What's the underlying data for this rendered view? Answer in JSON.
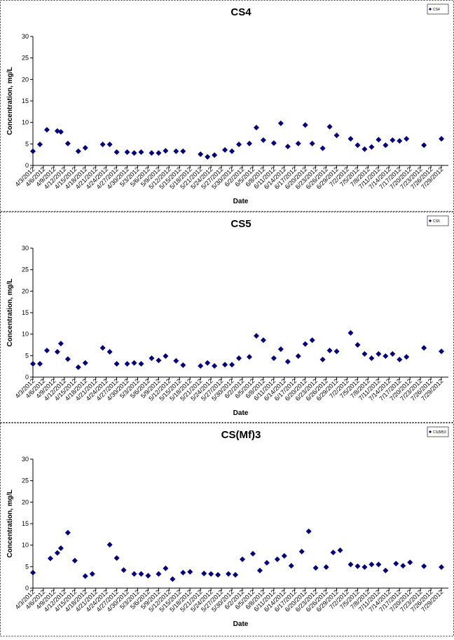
{
  "chart_data": [
    {
      "type": "scatter",
      "title": "CS4",
      "x_label": "Date",
      "y_label": "Concentration, mg/L",
      "x": [
        "4/3/2012",
        "4/5/2012",
        "4/7/2012",
        "4/10/2012",
        "4/11/2012",
        "4/13/2012",
        "4/16/2012",
        "4/18/2012",
        "4/23/2012",
        "4/25/2012",
        "4/27/2012",
        "4/30/2012",
        "5/2/2012",
        "5/4/2012",
        "5/7/2012",
        "5/9/2012",
        "5/11/2012",
        "5/14/2012",
        "5/16/2012",
        "5/21/2012",
        "5/23/2012",
        "5/25/2012",
        "5/28/2012",
        "5/30/2012",
        "6/1/2012",
        "6/4/2012",
        "6/6/2012",
        "6/8/2012",
        "6/11/2012",
        "6/13/2012",
        "6/15/2012",
        "6/18/2012",
        "6/20/2012",
        "6/22/2012",
        "6/25/2012",
        "6/27/2012",
        "6/29/2012",
        "7/3/2012",
        "7/5/2012",
        "7/7/2012",
        "7/9/2012",
        "7/11/2012",
        "7/13/2012",
        "7/15/2012",
        "7/17/2012",
        "7/19/2012",
        "7/24/2012",
        "7/29/2012"
      ],
      "series": [
        {
          "name": "CS4",
          "color": "#000080",
          "values": [
            3.3,
            4.9,
            8.3,
            8.0,
            7.8,
            5.1,
            3.3,
            4.1,
            4.9,
            4.9,
            3.1,
            3.1,
            2.9,
            3.1,
            2.9,
            2.9,
            3.4,
            3.3,
            3.3,
            2.6,
            2.0,
            2.4,
            3.6,
            3.3,
            4.9,
            5.1,
            8.8,
            5.9,
            5.2,
            9.8,
            4.4,
            5.1,
            9.4,
            5.1,
            4.0,
            9.0,
            7.0,
            6.2,
            4.7,
            3.8,
            4.3,
            6.0,
            4.7,
            5.9,
            5.7,
            6.2,
            4.7,
            6.2
          ]
        }
      ],
      "xlim": [
        "4/3/2012",
        "7/31/2012"
      ],
      "xticks": [
        "4/3/2012",
        "4/6/2012",
        "4/9/2012",
        "4/12/2012",
        "4/15/2012",
        "4/18/2012",
        "4/21/2012",
        "4/24/2012",
        "4/27/2012",
        "4/30/2012",
        "5/3/2012",
        "5/6/2012",
        "5/9/2012",
        "5/12/2012",
        "5/15/2012",
        "5/18/2012",
        "5/21/2012",
        "5/24/2012",
        "5/27/2012",
        "5/30/2012",
        "6/2/2012",
        "6/5/2012",
        "6/8/2012",
        "6/11/2012",
        "6/14/2012",
        "6/17/2012",
        "6/20/2012",
        "6/23/2012",
        "6/26/2012",
        "6/29/2012",
        "7/2/2012",
        "7/5/2012",
        "7/8/2012",
        "7/11/2012",
        "7/14/2012",
        "7/17/2012",
        "7/20/2012",
        "7/23/2012",
        "7/26/2012",
        "7/29/2012"
      ],
      "ylim": [
        0,
        30
      ],
      "yticks": [
        0,
        5,
        10,
        15,
        20,
        25,
        30
      ]
    },
    {
      "type": "scatter",
      "title": "CS5",
      "x_label": "Date",
      "y_label": "Concentration, mg/L",
      "x": [
        "4/3/2012",
        "4/5/2012",
        "4/7/2012",
        "4/10/2012",
        "4/11/2012",
        "4/13/2012",
        "4/16/2012",
        "4/18/2012",
        "4/23/2012",
        "4/25/2012",
        "4/27/2012",
        "4/30/2012",
        "5/2/2012",
        "5/4/2012",
        "5/7/2012",
        "5/9/2012",
        "5/11/2012",
        "5/14/2012",
        "5/16/2012",
        "5/21/2012",
        "5/23/2012",
        "5/25/2012",
        "5/28/2012",
        "5/30/2012",
        "6/1/2012",
        "6/4/2012",
        "6/6/2012",
        "6/8/2012",
        "6/11/2012",
        "6/13/2012",
        "6/15/2012",
        "6/18/2012",
        "6/20/2012",
        "6/22/2012",
        "6/25/2012",
        "6/27/2012",
        "6/29/2012",
        "7/3/2012",
        "7/5/2012",
        "7/7/2012",
        "7/9/2012",
        "7/11/2012",
        "7/13/2012",
        "7/15/2012",
        "7/17/2012",
        "7/19/2012",
        "7/24/2012",
        "7/29/2012"
      ],
      "series": [
        {
          "name": "CS5",
          "color": "#000080",
          "values": [
            3.1,
            3.1,
            6.2,
            5.9,
            7.8,
            4.2,
            2.3,
            3.3,
            6.8,
            5.9,
            3.1,
            3.1,
            3.3,
            3.1,
            4.4,
            3.9,
            4.9,
            3.8,
            2.8,
            2.6,
            3.3,
            2.6,
            2.9,
            2.9,
            4.4,
            4.7,
            9.6,
            8.6,
            4.4,
            6.5,
            3.6,
            4.9,
            7.7,
            8.6,
            4.1,
            6.2,
            6.0,
            10.3,
            7.5,
            5.4,
            4.4,
            5.4,
            4.9,
            5.4,
            4.1,
            4.7,
            6.8,
            6.0
          ]
        }
      ],
      "xlim": [
        "4/3/2012",
        "7/31/2012"
      ],
      "xticks": [
        "4/3/2012",
        "4/6/2012",
        "4/9/2012",
        "4/12/2012",
        "4/15/2012",
        "4/18/2012",
        "4/21/2012",
        "4/24/2012",
        "4/27/2012",
        "4/30/2012",
        "5/3/2012",
        "5/6/2012",
        "5/9/2012",
        "5/12/2012",
        "5/15/2012",
        "5/18/2012",
        "5/21/2012",
        "5/24/2012",
        "5/27/2012",
        "5/30/2012",
        "6/2/2012",
        "6/5/2012",
        "6/8/2012",
        "6/11/2012",
        "6/14/2012",
        "6/17/2012",
        "6/20/2012",
        "6/23/2012",
        "6/26/2012",
        "6/29/2012",
        "7/2/2012",
        "7/5/2012",
        "7/8/2012",
        "7/11/2012",
        "7/14/2012",
        "7/17/2012",
        "7/20/2012",
        "7/23/2012",
        "7/26/2012",
        "7/29/2012"
      ],
      "ylim": [
        0,
        30
      ],
      "yticks": [
        0,
        5,
        10,
        15,
        20,
        25,
        30
      ]
    },
    {
      "type": "scatter",
      "title": "CS(Mf)3",
      "x_label": "Date",
      "y_label": "Concentration, mg/L",
      "x": [
        "4/3/2012",
        "4/8/2012",
        "4/10/2012",
        "4/11/2012",
        "4/13/2012",
        "4/15/2012",
        "4/18/2012",
        "4/20/2012",
        "4/25/2012",
        "4/27/2012",
        "4/29/2012",
        "5/2/2012",
        "5/4/2012",
        "5/6/2012",
        "5/9/2012",
        "5/11/2012",
        "5/13/2012",
        "5/16/2012",
        "5/18/2012",
        "5/22/2012",
        "5/24/2012",
        "5/26/2012",
        "5/29/2012",
        "5/31/2012",
        "6/2/2012",
        "6/5/2012",
        "6/7/2012",
        "6/9/2012",
        "6/12/2012",
        "6/14/2012",
        "6/16/2012",
        "6/19/2012",
        "6/21/2012",
        "6/23/2012",
        "6/26/2012",
        "6/28/2012",
        "6/30/2012",
        "7/3/2012",
        "7/5/2012",
        "7/7/2012",
        "7/9/2012",
        "7/11/2012",
        "7/13/2012",
        "7/16/2012",
        "7/18/2012",
        "7/20/2012",
        "7/24/2012",
        "7/29/2012"
      ],
      "series": [
        {
          "name": "CS(Mf)3",
          "color": "#000080",
          "values": [
            3.6,
            6.9,
            8.2,
            9.3,
            12.9,
            6.4,
            2.8,
            3.3,
            10.1,
            7.0,
            4.2,
            3.3,
            3.3,
            2.9,
            3.3,
            4.6,
            2.1,
            3.6,
            3.8,
            3.4,
            3.3,
            3.1,
            3.3,
            3.1,
            6.7,
            8.0,
            4.1,
            5.9,
            6.7,
            7.5,
            5.2,
            8.5,
            13.2,
            4.7,
            4.9,
            8.3,
            8.8,
            5.5,
            5.1,
            4.9,
            5.5,
            5.5,
            4.1,
            5.7,
            5.2,
            6.0,
            5.1,
            4.9
          ]
        }
      ],
      "xlim": [
        "4/3/2012",
        "7/31/2012"
      ],
      "xticks": [
        "4/3/2012",
        "4/6/2012",
        "4/9/2012",
        "4/12/2012",
        "4/15/2012",
        "4/18/2012",
        "4/21/2012",
        "4/24/2012",
        "4/27/2012",
        "4/30/2012",
        "5/3/2012",
        "5/6/2012",
        "5/9/2012",
        "5/12/2012",
        "5/15/2012",
        "5/18/2012",
        "5/21/2012",
        "5/24/2012",
        "5/27/2012",
        "5/30/2012",
        "6/2/2012",
        "6/5/2012",
        "6/8/2012",
        "6/11/2012",
        "6/14/2012",
        "6/17/2012",
        "6/20/2012",
        "6/23/2012",
        "6/26/2012",
        "6/29/2012",
        "7/2/2012",
        "7/5/2012",
        "7/8/2012",
        "7/11/2012",
        "7/14/2012",
        "7/17/2012",
        "7/20/2012",
        "7/23/2012",
        "7/26/2012",
        "7/29/2012"
      ],
      "ylim": [
        0,
        30
      ],
      "yticks": [
        0,
        5,
        10,
        15,
        20,
        25,
        30
      ]
    }
  ]
}
